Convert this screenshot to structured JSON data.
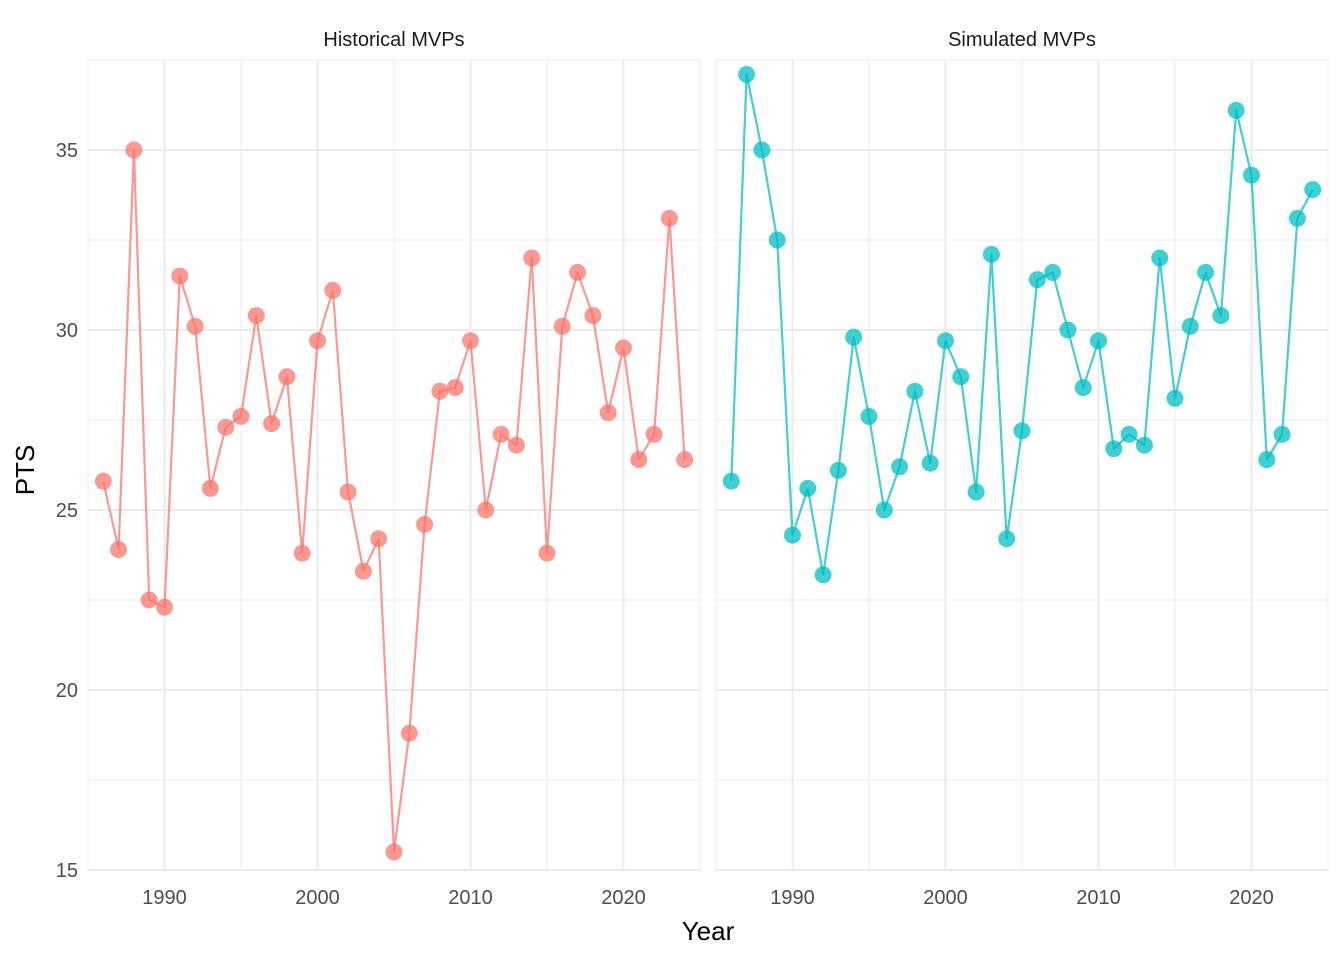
{
  "chart_data": {
    "type": "line",
    "xlabel": "Year",
    "ylabel": "PTS",
    "xlim": [
      1985,
      2025
    ],
    "ylim": [
      15,
      37.5
    ],
    "x_ticks": [
      1990,
      2000,
      2010,
      2020
    ],
    "y_ticks": [
      15,
      20,
      25,
      30,
      35
    ],
    "grid": true,
    "legend": "none",
    "panels": [
      {
        "label": "Historical MVPs",
        "color": "#F8766D",
        "x": [
          1986,
          1987,
          1988,
          1989,
          1990,
          1991,
          1992,
          1993,
          1994,
          1995,
          1996,
          1997,
          1998,
          1999,
          2000,
          2001,
          2002,
          2003,
          2004,
          2005,
          2006,
          2007,
          2008,
          2009,
          2010,
          2011,
          2012,
          2013,
          2014,
          2015,
          2016,
          2017,
          2018,
          2019,
          2020,
          2021,
          2022,
          2023,
          2024
        ],
        "y": [
          25.8,
          23.9,
          35.0,
          22.5,
          22.3,
          31.5,
          30.1,
          25.6,
          27.3,
          27.6,
          30.4,
          27.4,
          28.7,
          23.8,
          29.7,
          31.1,
          25.5,
          23.3,
          24.2,
          15.5,
          18.8,
          24.6,
          28.3,
          28.4,
          29.7,
          25.0,
          27.1,
          26.8,
          32.0,
          23.8,
          30.1,
          31.6,
          30.4,
          27.7,
          29.5,
          26.4,
          27.1,
          33.1,
          26.4
        ]
      },
      {
        "label": "Simulated MVPs",
        "color": "#00BFC4",
        "x": [
          1986,
          1987,
          1988,
          1989,
          1990,
          1991,
          1992,
          1993,
          1994,
          1995,
          1996,
          1997,
          1998,
          1999,
          2000,
          2001,
          2002,
          2003,
          2004,
          2005,
          2006,
          2007,
          2008,
          2009,
          2010,
          2011,
          2012,
          2013,
          2014,
          2015,
          2016,
          2017,
          2018,
          2019,
          2020,
          2021,
          2022,
          2023,
          2024
        ],
        "y": [
          25.8,
          37.1,
          35.0,
          32.5,
          24.3,
          25.6,
          23.2,
          26.1,
          29.8,
          27.6,
          25.0,
          26.2,
          28.3,
          26.3,
          29.7,
          28.7,
          25.5,
          32.1,
          24.2,
          27.2,
          31.4,
          31.6,
          30.0,
          28.4,
          29.7,
          26.7,
          27.1,
          26.8,
          32.0,
          28.1,
          30.1,
          31.6,
          30.4,
          36.1,
          34.3,
          26.4,
          27.1,
          33.1,
          33.9
        ]
      }
    ]
  }
}
